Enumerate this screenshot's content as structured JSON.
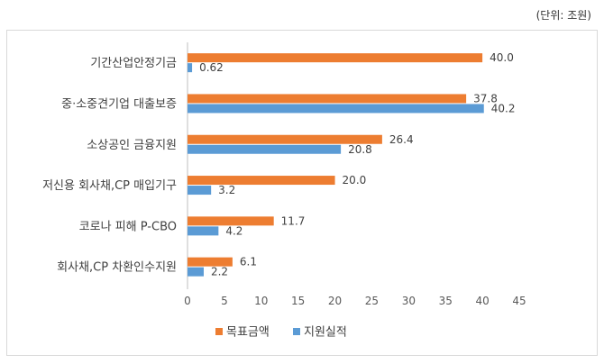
{
  "unit_note": "(단위: 조원)",
  "chart_data": {
    "type": "bar",
    "orientation": "horizontal",
    "categories": [
      "기간산업안정기금",
      "중·소중견기업 대출보증",
      "소상공인 금융지원",
      "저신용 회사채,CP 매입기구",
      "코로나 피해 P-CBO",
      "회사채,CP 차환인수지원"
    ],
    "series": [
      {
        "name": "목표금액",
        "color": "#ed7d31",
        "values": [
          40.0,
          37.8,
          26.4,
          20.0,
          11.7,
          6.1
        ],
        "labels": [
          "40.0",
          "37.8",
          "26.4",
          "20.0",
          "11.7",
          "6.1"
        ]
      },
      {
        "name": "지원실적",
        "color": "#5b9bd5",
        "values": [
          0.62,
          40.2,
          20.8,
          3.2,
          4.2,
          2.2
        ],
        "labels": [
          "0.62",
          "40.2",
          "20.8",
          "3.2",
          "4.2",
          "2.2"
        ]
      }
    ],
    "xlim": [
      0,
      45
    ],
    "xticks": [
      0,
      5,
      10,
      15,
      20,
      25,
      30,
      35,
      40,
      45
    ],
    "grid": false,
    "legend": "bottom"
  }
}
